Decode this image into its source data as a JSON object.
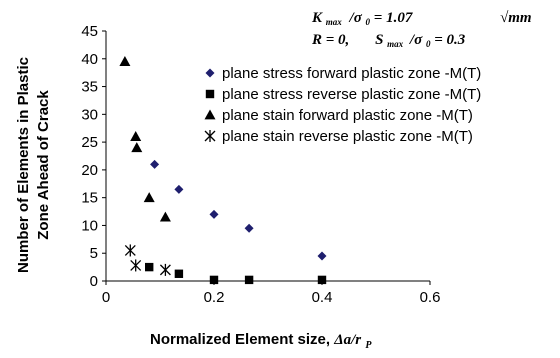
{
  "chart_data": {
    "type": "scatter",
    "title": "",
    "xlabel": "Normalized Element size, ",
    "xlabel_symbol": "Δa/r",
    "xlabel_subscript": "P",
    "ylabel_line1": "Number of Elements in Plastic",
    "ylabel_line2": "Zone Ahead of Crack",
    "xlim": [
      0,
      0.6
    ],
    "ylim": [
      0,
      45
    ],
    "x_ticks": [
      "0",
      "0.2",
      "0.4",
      "0.6"
    ],
    "y_ticks": [
      "0",
      "5",
      "10",
      "15",
      "20",
      "25",
      "30",
      "35",
      "40",
      "45"
    ],
    "grid": false,
    "legend_position": "right",
    "annotation": {
      "line1_k": "K",
      "line1_k_sub": "max",
      "line1_rest": "/σ",
      "line1_sigma_sub": "0",
      "line1_value": " = 1.07",
      "line1_unit": "√mm",
      "line2_r": "R = 0,",
      "line2_s": "S",
      "line2_s_sub": "max",
      "line2_rest": "/σ",
      "line2_sigma_sub": "0",
      "line2_value": " = 0.3"
    },
    "series": [
      {
        "name": "plane stress forward plastic zone -M(T)",
        "marker": "diamond",
        "color": "#1f1f6e",
        "points": [
          [
            0.09,
            21
          ],
          [
            0.135,
            16.5
          ],
          [
            0.2,
            12
          ],
          [
            0.265,
            9.5
          ],
          [
            0.4,
            4.5
          ]
        ]
      },
      {
        "name": "plane stress reverse plastic zone -M(T)",
        "marker": "square",
        "color": "#000000",
        "points": [
          [
            0.08,
            2.5
          ],
          [
            0.135,
            1.3
          ],
          [
            0.2,
            0.2
          ],
          [
            0.265,
            0.2
          ],
          [
            0.4,
            0.2
          ]
        ]
      },
      {
        "name": "plane stain forward plastic zone -M(T)",
        "marker": "triangle",
        "color": "#000000",
        "points": [
          [
            0.035,
            39.5
          ],
          [
            0.055,
            26
          ],
          [
            0.057,
            24
          ],
          [
            0.08,
            15
          ],
          [
            0.11,
            11.5
          ]
        ]
      },
      {
        "name": "plane stain reverse plastic zone -M(T)",
        "marker": "asterisk",
        "color": "#000000",
        "points": [
          [
            0.045,
            5.5
          ],
          [
            0.055,
            2.8
          ],
          [
            0.11,
            2
          ]
        ]
      }
    ]
  }
}
